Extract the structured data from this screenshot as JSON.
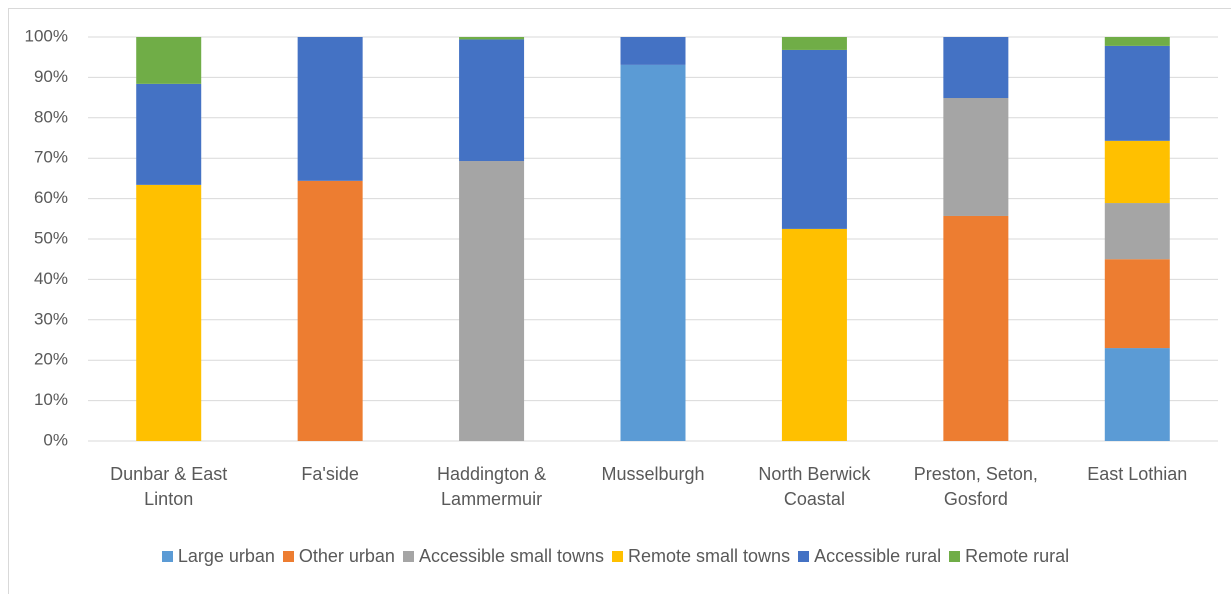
{
  "chart_data": {
    "type": "stacked_bar_100",
    "categories": [
      "Dunbar & East Linton",
      "Fa'side",
      "Haddington & Lammermuir",
      "Musselburgh",
      "North Berwick Coastal",
      "Preston, Seton, Gosford",
      "East Lothian"
    ],
    "series": [
      {
        "name": "Large urban",
        "color": "#5b9bd5",
        "values": [
          0,
          0,
          0,
          93.1,
          0,
          0,
          23.0
        ]
      },
      {
        "name": "Other urban",
        "color": "#ed7d31",
        "values": [
          0,
          64.4,
          0,
          0,
          0,
          55.7,
          22.0
        ]
      },
      {
        "name": "Accessible small towns",
        "color": "#a5a5a5",
        "values": [
          0,
          0,
          69.3,
          0,
          0,
          29.2,
          13.9
        ]
      },
      {
        "name": "Remote small towns",
        "color": "#ffc000",
        "values": [
          63.4,
          0,
          0,
          0,
          52.5,
          0,
          15.4
        ]
      },
      {
        "name": "Accessible rural",
        "color": "#4472c4",
        "values": [
          25.0,
          35.6,
          30.1,
          6.9,
          44.3,
          15.1,
          23.5
        ]
      },
      {
        "name": "Remote rural",
        "color": "#70ad47",
        "values": [
          11.6,
          0,
          0.6,
          0,
          3.2,
          0,
          2.2
        ]
      }
    ],
    "ylim": [
      0,
      100
    ],
    "yticks": [
      {
        "value": 0,
        "label": "0%"
      },
      {
        "value": 10,
        "label": "10%"
      },
      {
        "value": 20,
        "label": "20%"
      },
      {
        "value": 30,
        "label": "30%"
      },
      {
        "value": 40,
        "label": "40%"
      },
      {
        "value": 50,
        "label": "50%"
      },
      {
        "value": 60,
        "label": "60%"
      },
      {
        "value": 70,
        "label": "70%"
      },
      {
        "value": 80,
        "label": "80%"
      },
      {
        "value": 90,
        "label": "90%"
      },
      {
        "value": 100,
        "label": "100%"
      }
    ],
    "grid": true,
    "legend": "bottom"
  }
}
